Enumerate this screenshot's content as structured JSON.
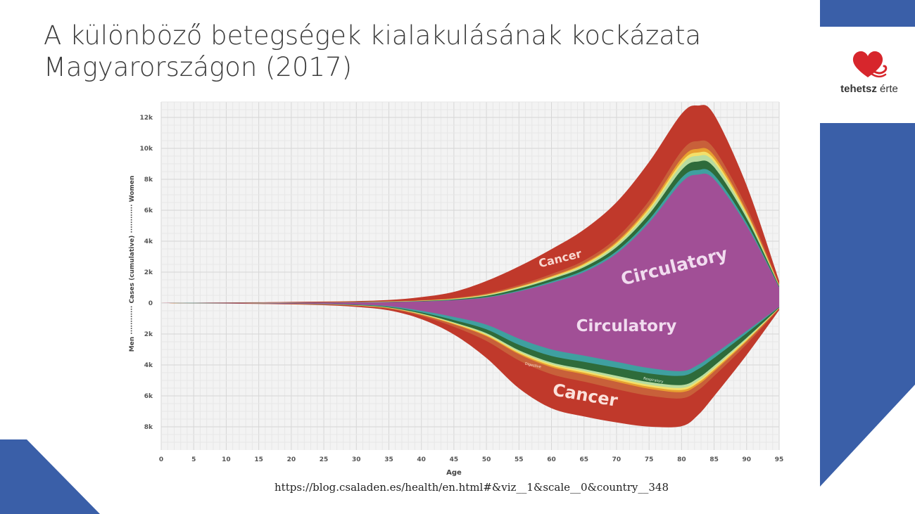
{
  "title": {
    "line1": "A különböző betegségek kialakulásának kockázata",
    "line2": "Magyarországon (2017)"
  },
  "logo": {
    "brand": "tehetsz",
    "suffix": "érte",
    "icon": "heart-icon"
  },
  "source_url": "https://blog.csaladen.es/health/en.html#&viz__1&scale__0&country__348",
  "colors": {
    "accent_blue": "#3a5fa8",
    "logo_red": "#d7262c"
  },
  "chart_data": {
    "type": "area",
    "xlabel": "Age",
    "ylabel": "Men ············ Cases (cumulative) ············ Women",
    "xlim": [
      0,
      95
    ],
    "ylim": [
      -9500,
      13000
    ],
    "x_ticks": [
      0,
      5,
      10,
      15,
      20,
      25,
      30,
      35,
      40,
      45,
      50,
      55,
      60,
      65,
      70,
      75,
      80,
      85,
      90,
      95
    ],
    "y_ticks": [
      {
        "value": 12000,
        "label": "12k"
      },
      {
        "value": 10000,
        "label": "10k"
      },
      {
        "value": 8000,
        "label": "8k"
      },
      {
        "value": 6000,
        "label": "6k"
      },
      {
        "value": 4000,
        "label": "4k"
      },
      {
        "value": 2000,
        "label": "2k"
      },
      {
        "value": 0,
        "label": "0"
      },
      {
        "value": -2000,
        "label": "2k"
      },
      {
        "value": -4000,
        "label": "4k"
      },
      {
        "value": -6000,
        "label": "6k"
      },
      {
        "value": -8000,
        "label": "8k"
      }
    ],
    "grid": true,
    "x": [
      0,
      5,
      10,
      15,
      20,
      25,
      30,
      35,
      40,
      45,
      50,
      55,
      60,
      65,
      70,
      75,
      80,
      82.5,
      85,
      90,
      95
    ],
    "women": {
      "series": [
        {
          "name": "Circulatory",
          "color": "#a14f96",
          "values": [
            0,
            5,
            10,
            15,
            20,
            30,
            40,
            60,
            100,
            180,
            350,
            750,
            1300,
            2000,
            3200,
            5200,
            7800,
            8300,
            8000,
            5000,
            1000
          ]
        },
        {
          "name": "",
          "color": "#3fa0a0",
          "values": [
            0,
            2,
            2,
            3,
            4,
            4,
            5,
            8,
            10,
            20,
            40,
            60,
            90,
            120,
            150,
            200,
            300,
            300,
            280,
            180,
            30
          ]
        },
        {
          "name": "",
          "color": "#2e6b3a",
          "values": [
            0,
            2,
            3,
            3,
            4,
            5,
            8,
            12,
            20,
            40,
            80,
            120,
            160,
            200,
            260,
            350,
            500,
            550,
            500,
            300,
            60
          ]
        },
        {
          "name": "",
          "color": "#b8dca0",
          "values": [
            0,
            1,
            2,
            3,
            3,
            4,
            6,
            10,
            15,
            20,
            40,
            60,
            80,
            100,
            150,
            220,
            330,
            360,
            330,
            200,
            40
          ]
        },
        {
          "name": "",
          "color": "#f3e06a",
          "values": [
            0,
            1,
            2,
            2,
            3,
            4,
            5,
            8,
            10,
            20,
            30,
            40,
            60,
            80,
            110,
            150,
            200,
            220,
            200,
            120,
            25
          ]
        },
        {
          "name": "",
          "color": "#e8a030",
          "values": [
            0,
            1,
            2,
            2,
            3,
            4,
            5,
            8,
            10,
            15,
            25,
            40,
            50,
            70,
            100,
            150,
            220,
            240,
            220,
            130,
            25
          ]
        },
        {
          "name": "",
          "color": "#c8603a",
          "values": [
            0,
            2,
            3,
            3,
            5,
            6,
            10,
            14,
            20,
            30,
            60,
            100,
            140,
            180,
            250,
            350,
            480,
            500,
            450,
            280,
            50
          ]
        },
        {
          "name": "Cancer",
          "color": "#c0392b",
          "values": [
            0,
            10,
            15,
            20,
            30,
            40,
            50,
            80,
            200,
            400,
            800,
            1200,
            1600,
            2000,
            2300,
            2500,
            2400,
            2300,
            2200,
            1400,
            200
          ]
        }
      ]
    },
    "men": {
      "series": [
        {
          "name": "Circulatory",
          "color": "#a14f96",
          "values": [
            0,
            5,
            10,
            20,
            30,
            50,
            100,
            200,
            500,
            900,
            1400,
            2300,
            3000,
            3400,
            3800,
            4200,
            4400,
            4000,
            3300,
            1800,
            250
          ]
        },
        {
          "name": "",
          "color": "#3fa0a0",
          "values": [
            0,
            1,
            2,
            3,
            5,
            10,
            20,
            50,
            100,
            200,
            300,
            400,
            420,
            400,
            380,
            350,
            300,
            280,
            250,
            150,
            20
          ]
        },
        {
          "name": "Respiratory",
          "color": "#2e6b3a",
          "values": [
            0,
            1,
            2,
            3,
            5,
            10,
            20,
            40,
            80,
            150,
            250,
            350,
            420,
            470,
            520,
            560,
            600,
            580,
            500,
            300,
            40
          ]
        },
        {
          "name": "",
          "color": "#b8dca0",
          "values": [
            0,
            1,
            1,
            2,
            3,
            5,
            10,
            15,
            30,
            50,
            80,
            100,
            110,
            120,
            150,
            170,
            180,
            170,
            150,
            90,
            10
          ]
        },
        {
          "name": "",
          "color": "#f3e06a",
          "values": [
            0,
            1,
            1,
            2,
            3,
            5,
            10,
            15,
            25,
            40,
            60,
            80,
            100,
            110,
            120,
            130,
            140,
            130,
            110,
            70,
            10
          ]
        },
        {
          "name": "",
          "color": "#e8a030",
          "values": [
            0,
            1,
            1,
            2,
            3,
            5,
            10,
            15,
            25,
            40,
            60,
            80,
            100,
            110,
            120,
            130,
            140,
            130,
            110,
            70,
            10
          ]
        },
        {
          "name": "Digestive",
          "color": "#c8603a",
          "values": [
            0,
            1,
            2,
            4,
            6,
            10,
            20,
            40,
            80,
            150,
            300,
            400,
            450,
            470,
            480,
            450,
            400,
            360,
            300,
            180,
            20
          ]
        },
        {
          "name": "Cancer",
          "color": "#c0392b",
          "values": [
            0,
            10,
            15,
            20,
            30,
            40,
            60,
            100,
            200,
            500,
            1100,
            1800,
            2200,
            2250,
            2150,
            2000,
            1800,
            1600,
            1300,
            700,
            100
          ]
        }
      ]
    },
    "annotations": [
      {
        "text": "Cancer",
        "side": "women"
      },
      {
        "text": "Circulatory",
        "side": "women"
      },
      {
        "text": "Circulatory",
        "side": "men"
      },
      {
        "text": "Digestive",
        "side": "men"
      },
      {
        "text": "Respiratory",
        "side": "men"
      },
      {
        "text": "Cancer",
        "side": "men"
      }
    ]
  }
}
